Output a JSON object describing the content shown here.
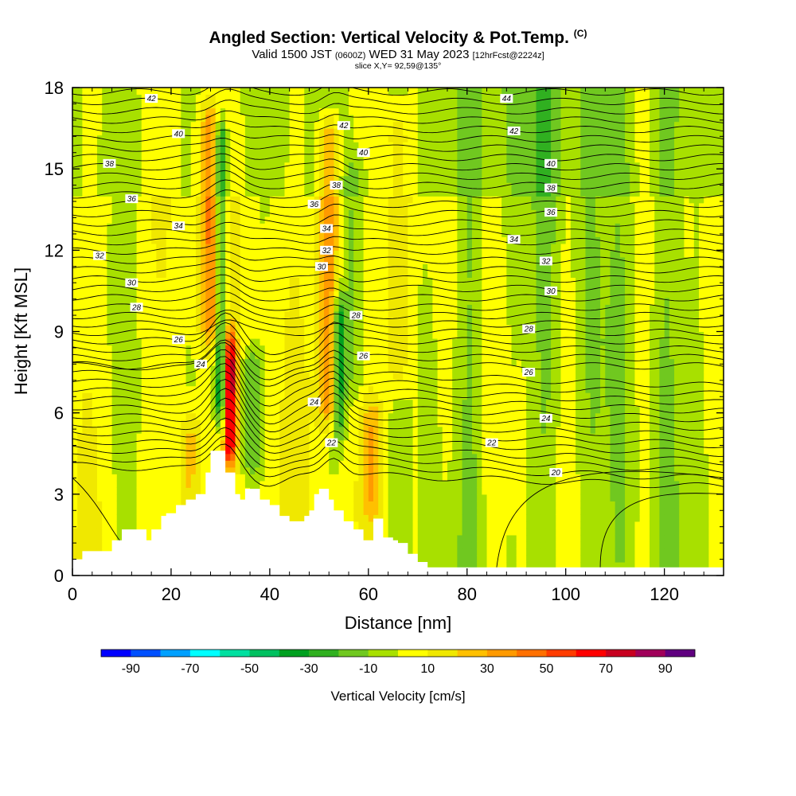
{
  "header": {
    "title_main": "Angled Section: Vertical Velocity & Pot.Temp.",
    "title_units": "(C)",
    "valid_a": "Valid 1500 JST",
    "valid_b": "(0600Z)",
    "valid_c": "WED 31 May 2023",
    "valid_d": "[12hrFcst@2224z]",
    "slice": "slice X,Y= 92,59@135°"
  },
  "chart_data": {
    "type": "heatmap",
    "title": "Angled Section: Vertical Velocity & Pot.Temp.",
    "xlabel": "Distance [nm]",
    "ylabel": "Height [Kft MSL]",
    "xlim": [
      0,
      132
    ],
    "ylim": [
      0,
      18
    ],
    "x_ticks": [
      0,
      20,
      40,
      60,
      80,
      100,
      120
    ],
    "y_ticks": [
      0,
      3,
      6,
      9,
      12,
      15,
      18
    ],
    "colorbar": {
      "label": "Vertical Velocity [cm/s]",
      "tick_labels": [
        "-90",
        "-70",
        "-50",
        "-30",
        "-10",
        "10",
        "30",
        "50",
        "70",
        "90"
      ],
      "bins": [
        -100,
        -90,
        -80,
        -70,
        -60,
        -50,
        -40,
        -30,
        -20,
        -10,
        0,
        10,
        20,
        30,
        40,
        50,
        60,
        70,
        80,
        90,
        100
      ],
      "colors": [
        "#0000ff",
        "#0050ff",
        "#00a0ff",
        "#00ffff",
        "#00e0a0",
        "#00c060",
        "#00a020",
        "#30b020",
        "#70c820",
        "#a8e000",
        "#ffff00",
        "#f0e800",
        "#ffc000",
        "#ff9a00",
        "#ff7000",
        "#ff3c00",
        "#ff0000",
        "#c80020",
        "#a0005a",
        "#600080"
      ]
    },
    "velocity_features": [
      {
        "x": 30,
        "z_range": [
          4.5,
          18
        ],
        "value": -50,
        "note": "narrow downdraft column"
      },
      {
        "x": 32,
        "z_range": [
          4.5,
          8.5
        ],
        "value": 70,
        "note": "strong updraft core"
      },
      {
        "x": 28,
        "z_range": [
          8,
          18
        ],
        "value": 35,
        "note": "updraft column"
      },
      {
        "x": 36,
        "z_range": [
          4,
          8
        ],
        "value": -25,
        "note": "downdraft region"
      },
      {
        "x": 54,
        "z_range": [
          5.5,
          10
        ],
        "value": -45,
        "note": "downdraft core"
      },
      {
        "x": 52,
        "z_range": [
          4.5,
          18
        ],
        "value": 40,
        "note": "updraft column"
      },
      {
        "x": 57,
        "z_range": [
          6,
          16
        ],
        "value": -15,
        "note": "weak downdraft"
      },
      {
        "x": 24,
        "z_range": [
          2.5,
          5.5
        ],
        "value": 25,
        "note": "low-level lift"
      },
      {
        "x": 61,
        "z_range": [
          2.5,
          6
        ],
        "value": 25,
        "note": "low-level lift"
      },
      {
        "x": 66,
        "z_range": [
          6,
          18
        ],
        "value": 20,
        "note": "weak updraft column"
      }
    ],
    "theta_contour_labels": [
      {
        "value": "42",
        "x": 16,
        "z": 17.6
      },
      {
        "value": "40",
        "x": 21.5,
        "z": 16.3
      },
      {
        "value": "38",
        "x": 7.5,
        "z": 15.2
      },
      {
        "value": "36",
        "x": 12,
        "z": 13.9
      },
      {
        "value": "34",
        "x": 21.5,
        "z": 12.9
      },
      {
        "value": "32",
        "x": 5.5,
        "z": 11.8
      },
      {
        "value": "30",
        "x": 12,
        "z": 10.8
      },
      {
        "value": "28",
        "x": 13,
        "z": 9.9
      },
      {
        "value": "26",
        "x": 21.5,
        "z": 8.7
      },
      {
        "value": "24",
        "x": 26,
        "z": 7.8
      },
      {
        "value": "42",
        "x": 55,
        "z": 16.6
      },
      {
        "value": "40",
        "x": 59,
        "z": 15.6
      },
      {
        "value": "38",
        "x": 53.5,
        "z": 14.4
      },
      {
        "value": "36",
        "x": 49,
        "z": 13.7
      },
      {
        "value": "34",
        "x": 51.5,
        "z": 12.8
      },
      {
        "value": "32",
        "x": 51.5,
        "z": 12.0
      },
      {
        "value": "30",
        "x": 50.5,
        "z": 11.4
      },
      {
        "value": "28",
        "x": 57.5,
        "z": 9.6
      },
      {
        "value": "26",
        "x": 59,
        "z": 8.1
      },
      {
        "value": "24",
        "x": 49,
        "z": 6.4
      },
      {
        "value": "22",
        "x": 52.5,
        "z": 4.9
      },
      {
        "value": "44",
        "x": 88,
        "z": 17.6
      },
      {
        "value": "42",
        "x": 89.5,
        "z": 16.4
      },
      {
        "value": "40",
        "x": 97,
        "z": 15.2
      },
      {
        "value": "38",
        "x": 97,
        "z": 14.3
      },
      {
        "value": "36",
        "x": 97,
        "z": 13.4
      },
      {
        "value": "34",
        "x": 89.5,
        "z": 12.4
      },
      {
        "value": "32",
        "x": 96,
        "z": 11.6
      },
      {
        "value": "30",
        "x": 97,
        "z": 10.5
      },
      {
        "value": "28",
        "x": 92.5,
        "z": 9.1
      },
      {
        "value": "26",
        "x": 92.5,
        "z": 7.5
      },
      {
        "value": "24",
        "x": 96,
        "z": 5.8
      },
      {
        "value": "22",
        "x": 85,
        "z": 4.9
      },
      {
        "value": "20",
        "x": 98,
        "z": 3.8
      }
    ]
  }
}
